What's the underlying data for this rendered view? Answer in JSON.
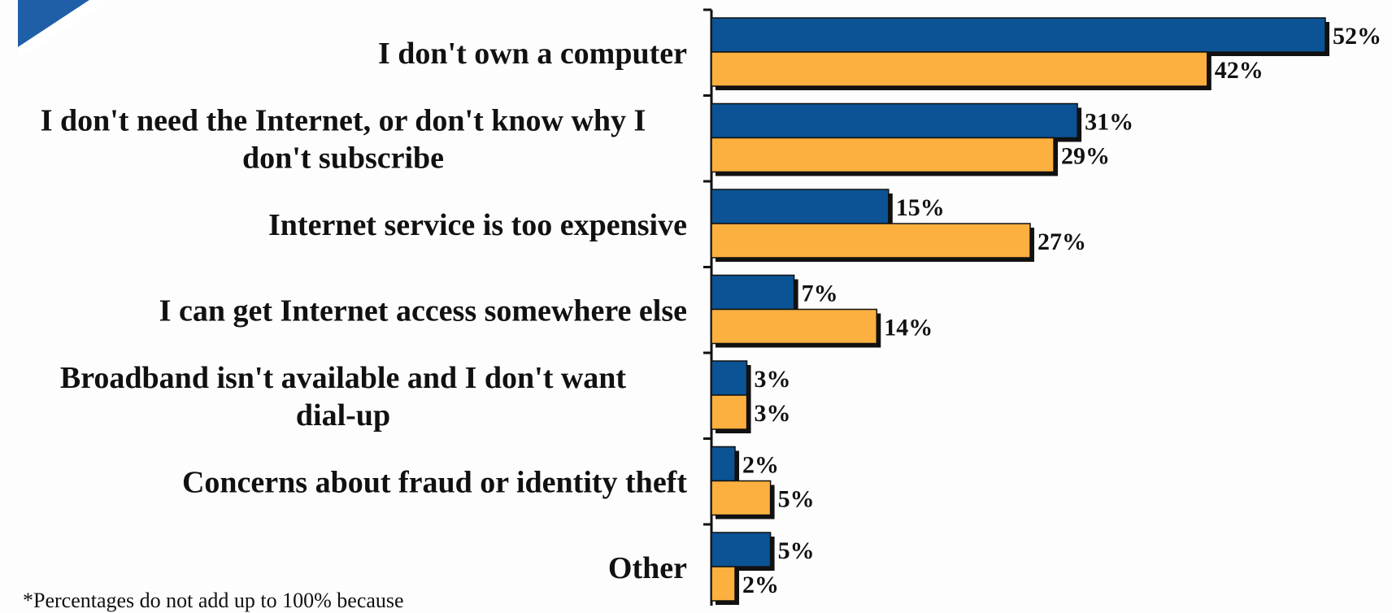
{
  "chart_data": {
    "type": "bar",
    "orientation": "horizontal",
    "categories": [
      "I don't own a computer",
      "I don't need the Internet, or don't know why I don't subscribe",
      "Internet service is too expensive",
      "I can get Internet access somewhere else",
      "Broadband isn't available and I don't want dial-up",
      "Concerns about fraud or identity theft",
      "Other"
    ],
    "category_lines": [
      [
        "I don't own a computer"
      ],
      [
        "I don't need the Internet, or don't know why I",
        "don't subscribe"
      ],
      [
        "Internet service is too expensive"
      ],
      [
        "I can get Internet access somewhere else"
      ],
      [
        "Broadband isn't available and I don't want",
        "dial-up"
      ],
      [
        "Concerns about fraud or identity theft"
      ],
      [
        "Other"
      ]
    ],
    "series": [
      {
        "color": "#0b5394",
        "values": [
          52,
          31,
          15,
          7,
          3,
          2,
          5
        ]
      },
      {
        "color": "#fbb040",
        "values": [
          42,
          29,
          27,
          14,
          3,
          5,
          2
        ]
      }
    ],
    "value_suffix": "%",
    "xlim": [
      0,
      52
    ],
    "legend": "none",
    "grid": false
  },
  "footnote": "*Percentages do not add up to 100% because"
}
